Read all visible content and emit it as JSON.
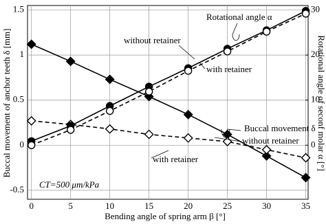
{
  "chart_data": {
    "type": "line",
    "xlabel": "Bending angle of spring arm  β [°]",
    "ylabel": "Buccal movement of anchor teeth  δ [mm]",
    "y2label": "Rotational angle of seconf molar  α [°]",
    "x": [
      0,
      5,
      10,
      15,
      20,
      25,
      30,
      35
    ],
    "xlim": [
      -0.5,
      35.3
    ],
    "xticks": [
      0,
      5,
      10,
      15,
      20,
      25,
      30,
      35
    ],
    "ylim": [
      -0.6,
      1.55
    ],
    "yticks": [
      -0.5,
      0,
      0.5,
      1,
      1.5
    ],
    "y2lim": [
      -12,
      31
    ],
    "y2ticks": [
      0,
      10,
      20,
      30
    ],
    "grid": true,
    "series": [
      {
        "color": "#000000",
        "marker": "diamond",
        "filled": true,
        "dashed": false,
        "values": [
          1.12,
          0.93,
          0.73,
          0.54,
          0.34,
          0.12,
          -0.12,
          -0.36
        ]
      },
      {
        "color": "#000000",
        "marker": "diamond",
        "filled": false,
        "dashed": true,
        "values": [
          0.27,
          0.23,
          0.18,
          0.12,
          0.08,
          0.04,
          -0.05,
          -0.14
        ]
      },
      {
        "color": "#000000",
        "marker": "circle",
        "filled": true,
        "dashed": false,
        "axis": "y2",
        "values": [
          0.9,
          4.3,
          8.7,
          13,
          17.1,
          21.4,
          25.5,
          29.8
        ]
      },
      {
        "color": "#000000",
        "marker": "circle",
        "filled": false,
        "dashed": true,
        "axis": "y2",
        "values": [
          0,
          3.4,
          7.6,
          11.9,
          16.5,
          20.8,
          25.2,
          29.2
        ]
      }
    ],
    "annotations": [
      "Rotational angle α",
      "without retainer",
      "with retainer",
      "Buccal movement δ",
      "without retainer",
      "with retainer",
      "CT=500 μm/kPa"
    ]
  }
}
